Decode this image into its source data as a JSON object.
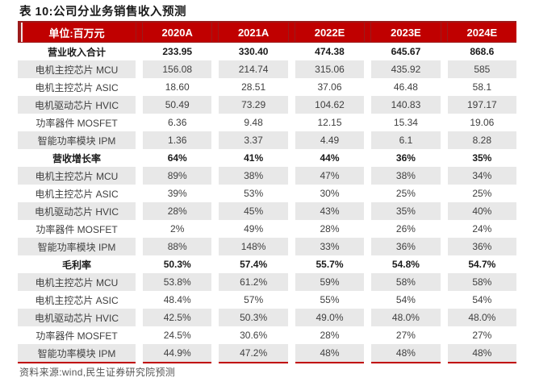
{
  "title": "表 10:公司分业务销售收入预测",
  "source": "资料来源:wind,民生证券研究院预测",
  "colors": {
    "header_red": "#c00000",
    "dark_red": "#9b1b1b",
    "row_gray": "#e8e8e8"
  },
  "table": {
    "header": [
      "单位:百万元",
      "2020A",
      "2021A",
      "2022E",
      "2023E",
      "2024E"
    ],
    "rows": [
      {
        "label": "营业收入合计",
        "section": true,
        "values": [
          "233.95",
          "330.40",
          "474.38",
          "645.67",
          "868.6"
        ]
      },
      {
        "label": "电机主控芯片 MCU",
        "section": false,
        "values": [
          "156.08",
          "214.74",
          "315.06",
          "435.92",
          "585"
        ]
      },
      {
        "label": "电机主控芯片 ASIC",
        "section": false,
        "values": [
          "18.60",
          "28.51",
          "37.06",
          "46.48",
          "58.1"
        ]
      },
      {
        "label": "电机驱动芯片 HVIC",
        "section": false,
        "values": [
          "50.49",
          "73.29",
          "104.62",
          "140.83",
          "197.17"
        ]
      },
      {
        "label": "功率器件 MOSFET",
        "section": false,
        "values": [
          "6.36",
          "9.48",
          "12.15",
          "15.34",
          "19.06"
        ]
      },
      {
        "label": "智能功率模块 IPM",
        "section": false,
        "values": [
          "1.36",
          "3.37",
          "4.49",
          "6.1",
          "8.28"
        ]
      },
      {
        "label": "营收增长率",
        "section": true,
        "values": [
          "64%",
          "41%",
          "44%",
          "36%",
          "35%"
        ]
      },
      {
        "label": "电机主控芯片 MCU",
        "section": false,
        "values": [
          "89%",
          "38%",
          "47%",
          "38%",
          "34%"
        ]
      },
      {
        "label": "电机主控芯片 ASIC",
        "section": false,
        "values": [
          "39%",
          "53%",
          "30%",
          "25%",
          "25%"
        ]
      },
      {
        "label": "电机驱动芯片 HVIC",
        "section": false,
        "values": [
          "28%",
          "45%",
          "43%",
          "35%",
          "40%"
        ]
      },
      {
        "label": "功率器件 MOSFET",
        "section": false,
        "values": [
          "2%",
          "49%",
          "28%",
          "26%",
          "24%"
        ]
      },
      {
        "label": "智能功率模块 IPM",
        "section": false,
        "values": [
          "88%",
          "148%",
          "33%",
          "36%",
          "36%"
        ]
      },
      {
        "label": "毛利率",
        "section": true,
        "values": [
          "50.3%",
          "57.4%",
          "55.7%",
          "54.8%",
          "54.7%"
        ]
      },
      {
        "label": "电机主控芯片 MCU",
        "section": false,
        "values": [
          "53.8%",
          "61.2%",
          "59%",
          "58%",
          "58%"
        ]
      },
      {
        "label": "电机主控芯片 ASIC",
        "section": false,
        "values": [
          "48.4%",
          "57%",
          "55%",
          "54%",
          "54%"
        ]
      },
      {
        "label": "电机驱动芯片 HVIC",
        "section": false,
        "values": [
          "42.5%",
          "50.3%",
          "49.0%",
          "48.0%",
          "48.0%"
        ]
      },
      {
        "label": "功率器件 MOSFET",
        "section": false,
        "values": [
          "24.5%",
          "30.6%",
          "28%",
          "27%",
          "27%"
        ]
      },
      {
        "label": "智能功率模块 IPM",
        "section": false,
        "values": [
          "44.9%",
          "47.2%",
          "48%",
          "48%",
          "48%"
        ]
      }
    ]
  }
}
